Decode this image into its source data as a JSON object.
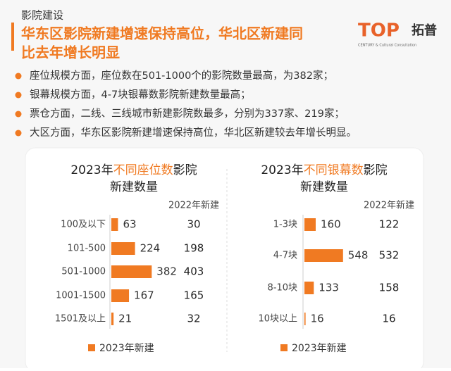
{
  "header": {
    "section": "影院建设",
    "title_lines": [
      "华东区影院新建增速保持高位，华北区新建同",
      "比去年增长明显"
    ],
    "logo": {
      "mark": "TOP",
      "name": "拓普",
      "tagline": "CENTURY & Cultural Consultation"
    }
  },
  "bullets": [
    "座位规模方面，座位数在501-1000个的影院数量最高，为382家；",
    "银幕规模方面，4-7块银幕数影院新建数量最高；",
    "票仓方面，二线、三线城市新建影院数最多，分别为337家、219家；",
    "大区方面，华东区影院新建增速保持高位，华北区新建较去年增长明显。"
  ],
  "chart_data": [
    {
      "type": "bar",
      "orientation": "horizontal",
      "title_parts": [
        "2023年",
        "不同座位数",
        "影院",
        "新建数量"
      ],
      "categories": [
        "100及以下",
        "101-500",
        "501-1000",
        "1001-1500",
        "1501及以上"
      ],
      "series": [
        {
          "name": "2023年新建",
          "color": "#f07a22",
          "values": [
            63,
            224,
            382,
            167,
            21
          ]
        }
      ],
      "comparison": {
        "name": "2022年新建",
        "values": [
          30,
          198,
          403,
          165,
          32
        ]
      }
    },
    {
      "type": "bar",
      "orientation": "horizontal",
      "title_parts": [
        "2023年",
        "不同银幕数",
        "影院",
        "新建数量"
      ],
      "categories": [
        "1-3块",
        "4-7块",
        "8-10块",
        "10块以上"
      ],
      "series": [
        {
          "name": "2023年新建",
          "color": "#f07a22",
          "values": [
            160,
            548,
            133,
            16
          ]
        }
      ],
      "comparison": {
        "name": "2022年新建",
        "values": [
          122,
          532,
          158,
          16
        ]
      }
    }
  ]
}
